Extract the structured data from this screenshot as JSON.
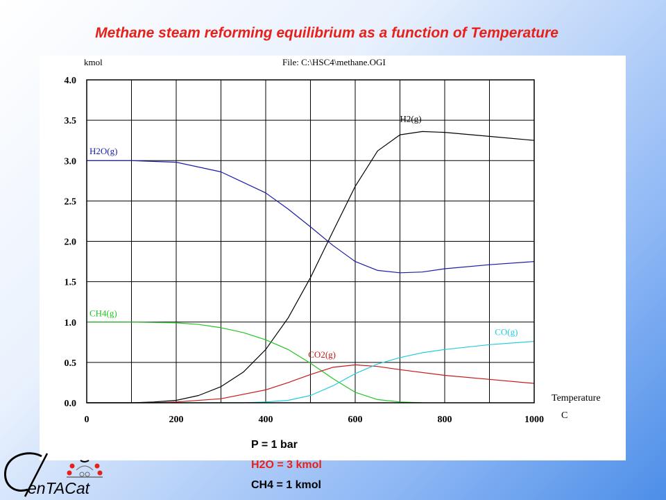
{
  "slide": {
    "title": "Methane steam reforming equilibrium as a function of Temperature",
    "conditions": [
      {
        "text": "P = 1 bar",
        "color": "#000000"
      },
      {
        "text": "H2O = 3 kmol",
        "color": "#e8201a"
      },
      {
        "text": "CH4 = 1 kmol",
        "color": "#000000"
      }
    ],
    "logo_text": "enTACat"
  },
  "chart_data": {
    "type": "line",
    "y_unit_label": "kmol",
    "file_label": "File: C:\\HSC4\\methane.OGI",
    "xlabel": "Temperature",
    "xunit": "C",
    "xlim": [
      0,
      1000
    ],
    "ylim": [
      0,
      4
    ],
    "x_ticks": [
      "0",
      "200",
      "400",
      "600",
      "800",
      "1000"
    ],
    "y_ticks": [
      "0.0",
      "0.5",
      "1.0",
      "1.5",
      "2.0",
      "2.5",
      "3.0",
      "3.5",
      "4.0"
    ],
    "grid": true,
    "series": [
      {
        "name": "H2O(g)",
        "color": "#1a1aa8",
        "x": [
          0,
          100,
          200,
          300,
          400,
          450,
          500,
          550,
          600,
          650,
          700,
          750,
          800,
          900,
          1000
        ],
        "y": [
          3.0,
          3.0,
          2.98,
          2.86,
          2.6,
          2.4,
          2.18,
          1.95,
          1.75,
          1.64,
          1.61,
          1.62,
          1.66,
          1.71,
          1.75
        ]
      },
      {
        "name": "H2(g)",
        "color": "#000000",
        "x": [
          0,
          100,
          150,
          200,
          250,
          300,
          350,
          400,
          450,
          500,
          550,
          600,
          650,
          700,
          750,
          800,
          900,
          1000
        ],
        "y": [
          0.0,
          0.0,
          0.01,
          0.03,
          0.09,
          0.2,
          0.38,
          0.66,
          1.05,
          1.55,
          2.12,
          2.68,
          3.12,
          3.32,
          3.36,
          3.35,
          3.3,
          3.25
        ]
      },
      {
        "name": "CH4(g)",
        "color": "#22c422",
        "x": [
          0,
          100,
          200,
          250,
          300,
          350,
          400,
          450,
          500,
          550,
          600,
          650,
          700,
          750
        ],
        "y": [
          1.0,
          1.0,
          0.99,
          0.97,
          0.93,
          0.87,
          0.78,
          0.66,
          0.49,
          0.3,
          0.13,
          0.04,
          0.01,
          0.0
        ]
      },
      {
        "name": "CO2(g)",
        "color": "#c81818",
        "x": [
          0,
          150,
          200,
          300,
          400,
          450,
          500,
          550,
          600,
          650,
          700,
          800,
          900,
          1000
        ],
        "y": [
          0.0,
          0.0,
          0.01,
          0.05,
          0.16,
          0.25,
          0.35,
          0.44,
          0.47,
          0.45,
          0.41,
          0.34,
          0.29,
          0.24
        ]
      },
      {
        "name": "CO(g)",
        "color": "#22cce0",
        "x": [
          0,
          350,
          400,
          450,
          500,
          550,
          600,
          650,
          700,
          750,
          800,
          900,
          1000
        ],
        "y": [
          0.0,
          0.0,
          0.01,
          0.03,
          0.09,
          0.21,
          0.36,
          0.48,
          0.56,
          0.62,
          0.66,
          0.72,
          0.76
        ]
      }
    ]
  }
}
